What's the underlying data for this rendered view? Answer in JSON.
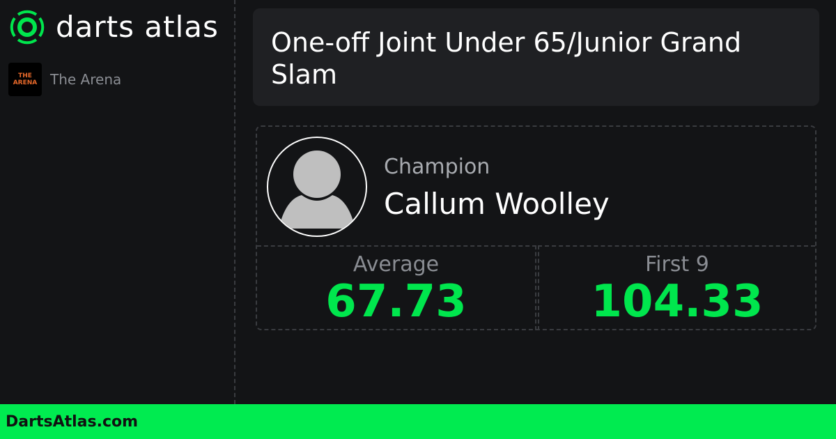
{
  "brand": {
    "name": "darts atlas",
    "accent": "#00e64d"
  },
  "venue": {
    "icon_text": "THE ARENA",
    "name": "The Arena"
  },
  "event": {
    "title": "One-off Joint Under 65/Junior Grand Slam"
  },
  "champion": {
    "label": "Champion",
    "name": "Callum Woolley",
    "avatar": "default-user-icon"
  },
  "stats": [
    {
      "label": "Average",
      "value": "67.73"
    },
    {
      "label": "First 9",
      "value": "104.33"
    }
  ],
  "footer": {
    "site": "DartsAtlas.com"
  }
}
